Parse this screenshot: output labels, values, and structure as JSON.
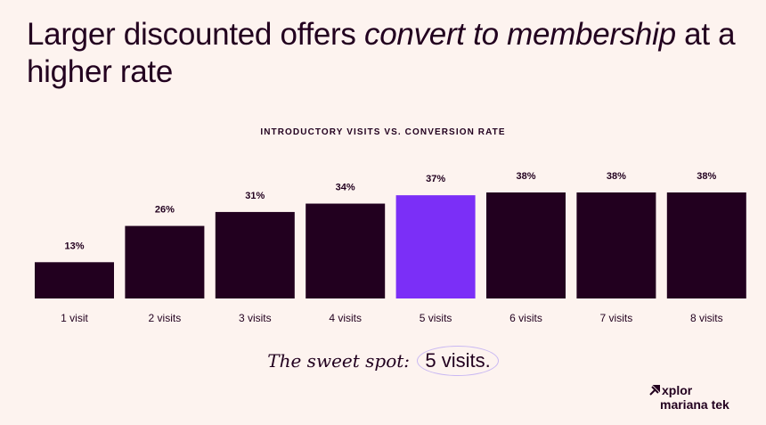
{
  "headline": {
    "part1": "Larger discounted offers ",
    "emphasis": "convert to membership",
    "part2": " at a higher rate"
  },
  "tagline": {
    "lead": "The sweet spot: ",
    "highlight": "5 visits."
  },
  "logo": {
    "brand": "xplor",
    "product": "mariana tek"
  },
  "colors": {
    "background": "#fdf3ef",
    "bar": "#22001f",
    "highlight_bar": "#7b2ff7"
  },
  "chart_data": {
    "type": "bar",
    "title": "INTRODUCTORY VISITS VS. CONVERSION RATE",
    "categories": [
      "1 visit",
      "2 visits",
      "3 visits",
      "4 visits",
      "5 visits",
      "6 visits",
      "7 visits",
      "8 visits"
    ],
    "values": [
      13,
      26,
      31,
      34,
      37,
      38,
      38,
      38
    ],
    "value_labels": [
      "13%",
      "26%",
      "31%",
      "34%",
      "37%",
      "38%",
      "38%",
      "38%"
    ],
    "highlight_index": 4,
    "ylim": [
      0,
      38
    ],
    "grid": false,
    "legend": "none"
  }
}
